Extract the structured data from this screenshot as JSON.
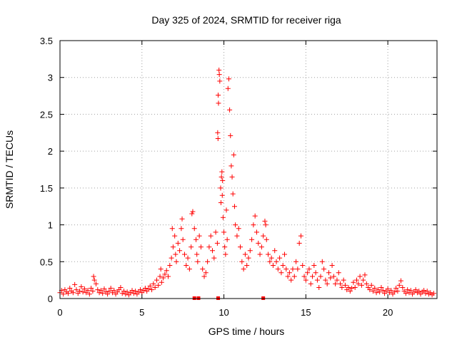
{
  "chart_data": {
    "type": "scatter",
    "title": "Day 325 of 2024, SRMTID for receiver riga",
    "xlabel": "GPS time / hours",
    "ylabel": "SRMTID / TECUs",
    "xlim": [
      0,
      23
    ],
    "ylim": [
      0,
      3.5
    ],
    "xticks": [
      0,
      5,
      10,
      15,
      20
    ],
    "xtick_labels": [
      "0",
      "5",
      "10",
      "15",
      "20"
    ],
    "yticks": [
      0,
      0.5,
      1,
      1.5,
      2,
      2.5,
      3,
      3.5
    ],
    "ytick_labels": [
      "0",
      "0.5",
      "1",
      "1.5",
      "2",
      "2.5",
      "3",
      "3.5"
    ],
    "grid": true,
    "marker": "+",
    "series_color": "#ff0000",
    "series": [
      {
        "name": "SRMTID",
        "points": [
          [
            0.0,
            0.08
          ],
          [
            0.1,
            0.11
          ],
          [
            0.2,
            0.06
          ],
          [
            0.3,
            0.12
          ],
          [
            0.4,
            0.09
          ],
          [
            0.5,
            0.07
          ],
          [
            0.6,
            0.14
          ],
          [
            0.7,
            0.1
          ],
          [
            0.8,
            0.08
          ],
          [
            0.9,
            0.19
          ],
          [
            1.0,
            0.12
          ],
          [
            1.1,
            0.07
          ],
          [
            1.2,
            0.1
          ],
          [
            1.3,
            0.16
          ],
          [
            1.4,
            0.09
          ],
          [
            1.5,
            0.13
          ],
          [
            1.6,
            0.08
          ],
          [
            1.7,
            0.11
          ],
          [
            1.8,
            0.06
          ],
          [
            1.9,
            0.14
          ],
          [
            2.0,
            0.1
          ],
          [
            2.05,
            0.3
          ],
          [
            2.1,
            0.25
          ],
          [
            2.2,
            0.2
          ],
          [
            2.3,
            0.12
          ],
          [
            2.4,
            0.08
          ],
          [
            2.5,
            0.11
          ],
          [
            2.6,
            0.07
          ],
          [
            2.7,
            0.13
          ],
          [
            2.8,
            0.09
          ],
          [
            2.9,
            0.06
          ],
          [
            3.0,
            0.1
          ],
          [
            3.1,
            0.14
          ],
          [
            3.2,
            0.08
          ],
          [
            3.3,
            0.11
          ],
          [
            3.4,
            0.06
          ],
          [
            3.5,
            0.09
          ],
          [
            3.6,
            0.12
          ],
          [
            3.7,
            0.15
          ],
          [
            3.8,
            0.07
          ],
          [
            3.9,
            0.1
          ],
          [
            4.0,
            0.06
          ],
          [
            4.1,
            0.09
          ],
          [
            4.2,
            0.05
          ],
          [
            4.3,
            0.08
          ],
          [
            4.4,
            0.11
          ],
          [
            4.5,
            0.07
          ],
          [
            4.6,
            0.1
          ],
          [
            4.7,
            0.06
          ],
          [
            4.8,
            0.09
          ],
          [
            4.9,
            0.12
          ],
          [
            5.0,
            0.08
          ],
          [
            5.1,
            0.11
          ],
          [
            5.2,
            0.14
          ],
          [
            5.3,
            0.1
          ],
          [
            5.4,
            0.13
          ],
          [
            5.5,
            0.17
          ],
          [
            5.6,
            0.12
          ],
          [
            5.7,
            0.2
          ],
          [
            5.8,
            0.15
          ],
          [
            5.9,
            0.25
          ],
          [
            6.0,
            0.18
          ],
          [
            6.1,
            0.3
          ],
          [
            6.15,
            0.4
          ],
          [
            6.2,
            0.22
          ],
          [
            6.3,
            0.28
          ],
          [
            6.4,
            0.33
          ],
          [
            6.5,
            0.38
          ],
          [
            6.6,
            0.3
          ],
          [
            6.7,
            0.45
          ],
          [
            6.8,
            0.55
          ],
          [
            6.85,
            0.95
          ],
          [
            6.9,
            0.7
          ],
          [
            7.0,
            0.85
          ],
          [
            7.05,
            0.6
          ],
          [
            7.1,
            0.5
          ],
          [
            7.2,
            0.75
          ],
          [
            7.3,
            0.65
          ],
          [
            7.4,
            0.95
          ],
          [
            7.45,
            1.08
          ],
          [
            7.5,
            0.8
          ],
          [
            7.6,
            0.6
          ],
          [
            7.7,
            0.45
          ],
          [
            7.8,
            0.55
          ],
          [
            7.9,
            0.4
          ],
          [
            8.0,
            0.7
          ],
          [
            8.05,
            1.15
          ],
          [
            8.1,
            1.18
          ],
          [
            8.2,
            0.95
          ],
          [
            8.3,
            0.8
          ],
          [
            8.35,
            0.6
          ],
          [
            8.4,
            0.5
          ],
          [
            8.5,
            0.85
          ],
          [
            8.6,
            0.7
          ],
          [
            8.7,
            0.4
          ],
          [
            8.8,
            0.3
          ],
          [
            8.9,
            0.35
          ],
          [
            9.0,
            0.5
          ],
          [
            9.1,
            0.7
          ],
          [
            9.2,
            0.85
          ],
          [
            9.3,
            0.65
          ],
          [
            9.4,
            0.55
          ],
          [
            9.5,
            0.9
          ],
          [
            9.6,
            0.75
          ],
          [
            9.62,
            2.25
          ],
          [
            9.64,
            2.17
          ],
          [
            9.65,
            2.76
          ],
          [
            9.67,
            2.65
          ],
          [
            9.7,
            3.1
          ],
          [
            9.72,
            3.04
          ],
          [
            9.75,
            2.95
          ],
          [
            9.8,
            1.5
          ],
          [
            9.82,
            1.3
          ],
          [
            9.85,
            1.65
          ],
          [
            9.88,
            1.72
          ],
          [
            9.9,
            1.4
          ],
          [
            9.92,
            1.6
          ],
          [
            9.95,
            1.1
          ],
          [
            10.0,
            0.9
          ],
          [
            10.05,
            0.7
          ],
          [
            10.1,
            0.6
          ],
          [
            10.15,
            1.2
          ],
          [
            10.2,
            0.8
          ],
          [
            10.25,
            2.85
          ],
          [
            10.3,
            2.98
          ],
          [
            10.35,
            2.56
          ],
          [
            10.4,
            2.21
          ],
          [
            10.45,
            1.8
          ],
          [
            10.5,
            1.65
          ],
          [
            10.55,
            1.42
          ],
          [
            10.6,
            1.95
          ],
          [
            10.65,
            1.25
          ],
          [
            10.7,
            1.0
          ],
          [
            10.8,
            0.85
          ],
          [
            10.9,
            0.95
          ],
          [
            11.0,
            0.7
          ],
          [
            11.1,
            0.5
          ],
          [
            11.2,
            0.4
          ],
          [
            11.3,
            0.6
          ],
          [
            11.4,
            0.45
          ],
          [
            11.5,
            0.55
          ],
          [
            11.6,
            0.65
          ],
          [
            11.7,
            0.8
          ],
          [
            11.8,
            1.0
          ],
          [
            11.9,
            1.12
          ],
          [
            12.0,
            0.9
          ],
          [
            12.1,
            0.75
          ],
          [
            12.2,
            0.6
          ],
          [
            12.3,
            0.7
          ],
          [
            12.4,
            0.85
          ],
          [
            12.5,
            1.05
          ],
          [
            12.55,
            1.0
          ],
          [
            12.6,
            0.8
          ],
          [
            12.7,
            0.6
          ],
          [
            12.8,
            0.5
          ],
          [
            12.9,
            0.55
          ],
          [
            13.0,
            0.45
          ],
          [
            13.1,
            0.65
          ],
          [
            13.2,
            0.5
          ],
          [
            13.3,
            0.4
          ],
          [
            13.4,
            0.55
          ],
          [
            13.5,
            0.35
          ],
          [
            13.6,
            0.45
          ],
          [
            13.7,
            0.6
          ],
          [
            13.8,
            0.4
          ],
          [
            13.9,
            0.3
          ],
          [
            14.0,
            0.35
          ],
          [
            14.1,
            0.25
          ],
          [
            14.2,
            0.4
          ],
          [
            14.3,
            0.3
          ],
          [
            14.4,
            0.5
          ],
          [
            14.5,
            0.4
          ],
          [
            14.6,
            0.75
          ],
          [
            14.7,
            0.85
          ],
          [
            14.8,
            0.45
          ],
          [
            14.9,
            0.3
          ],
          [
            15.0,
            0.25
          ],
          [
            15.1,
            0.35
          ],
          [
            15.2,
            0.4
          ],
          [
            15.3,
            0.2
          ],
          [
            15.4,
            0.3
          ],
          [
            15.5,
            0.45
          ],
          [
            15.6,
            0.35
          ],
          [
            15.7,
            0.25
          ],
          [
            15.8,
            0.15
          ],
          [
            15.9,
            0.3
          ],
          [
            16.0,
            0.5
          ],
          [
            16.1,
            0.4
          ],
          [
            16.2,
            0.25
          ],
          [
            16.3,
            0.2
          ],
          [
            16.4,
            0.35
          ],
          [
            16.5,
            0.28
          ],
          [
            16.6,
            0.45
          ],
          [
            16.7,
            0.3
          ],
          [
            16.8,
            0.2
          ],
          [
            16.9,
            0.25
          ],
          [
            17.0,
            0.35
          ],
          [
            17.1,
            0.2
          ],
          [
            17.2,
            0.15
          ],
          [
            17.3,
            0.25
          ],
          [
            17.4,
            0.18
          ],
          [
            17.5,
            0.12
          ],
          [
            17.6,
            0.15
          ],
          [
            17.7,
            0.1
          ],
          [
            17.8,
            0.14
          ],
          [
            17.9,
            0.22
          ],
          [
            18.0,
            0.15
          ],
          [
            18.1,
            0.25
          ],
          [
            18.2,
            0.2
          ],
          [
            18.3,
            0.3
          ],
          [
            18.4,
            0.18
          ],
          [
            18.5,
            0.25
          ],
          [
            18.6,
            0.32
          ],
          [
            18.7,
            0.2
          ],
          [
            18.8,
            0.15
          ],
          [
            18.9,
            0.12
          ],
          [
            19.0,
            0.18
          ],
          [
            19.1,
            0.1
          ],
          [
            19.2,
            0.14
          ],
          [
            19.3,
            0.08
          ],
          [
            19.4,
            0.12
          ],
          [
            19.5,
            0.09
          ],
          [
            19.6,
            0.15
          ],
          [
            19.7,
            0.11
          ],
          [
            19.8,
            0.07
          ],
          [
            19.9,
            0.1
          ],
          [
            20.0,
            0.13
          ],
          [
            20.1,
            0.08
          ],
          [
            20.2,
            0.11
          ],
          [
            20.3,
            0.06
          ],
          [
            20.4,
            0.09
          ],
          [
            20.5,
            0.14
          ],
          [
            20.6,
            0.1
          ],
          [
            20.7,
            0.18
          ],
          [
            20.8,
            0.24
          ],
          [
            20.9,
            0.15
          ],
          [
            21.0,
            0.1
          ],
          [
            21.1,
            0.07
          ],
          [
            21.2,
            0.12
          ],
          [
            21.3,
            0.08
          ],
          [
            21.4,
            0.11
          ],
          [
            21.5,
            0.06
          ],
          [
            21.6,
            0.09
          ],
          [
            21.7,
            0.12
          ],
          [
            21.8,
            0.08
          ],
          [
            21.9,
            0.1
          ],
          [
            22.0,
            0.06
          ],
          [
            22.1,
            0.09
          ],
          [
            22.2,
            0.11
          ],
          [
            22.3,
            0.07
          ],
          [
            22.4,
            0.1
          ],
          [
            22.5,
            0.06
          ],
          [
            22.6,
            0.08
          ],
          [
            22.7,
            0.05
          ],
          [
            22.8,
            0.07
          ]
        ]
      }
    ],
    "zero_markers_x": [
      8.2,
      8.45,
      9.65,
      12.4
    ]
  }
}
